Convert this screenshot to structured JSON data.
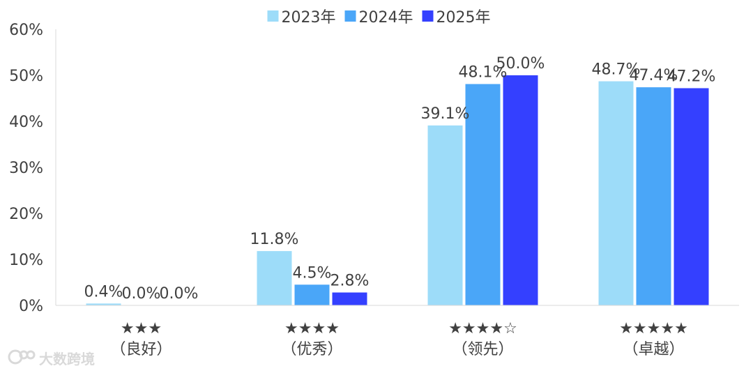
{
  "chart_data": {
    "type": "bar",
    "categories": [
      {
        "stars": "★★★",
        "label": "（良好）"
      },
      {
        "stars": "★★★★",
        "label": "（优秀）"
      },
      {
        "stars": "★★★★☆",
        "label": "（领先）"
      },
      {
        "stars": "★★★★★",
        "label": "（卓越）"
      }
    ],
    "series": [
      {
        "name": "2023年",
        "color": "#9ddcf9",
        "values": [
          0.4,
          11.8,
          39.1,
          48.7
        ],
        "labels": [
          "0.4%",
          "11.8%",
          "39.1%",
          "48.7%"
        ]
      },
      {
        "name": "2024年",
        "color": "#4aa6f8",
        "values": [
          0.0,
          4.5,
          48.1,
          47.4
        ],
        "labels": [
          "0.0%",
          "4.5%",
          "48.1%",
          "47.4%"
        ]
      },
      {
        "name": "2025年",
        "color": "#3440ff",
        "values": [
          0.0,
          2.8,
          50.0,
          47.2
        ],
        "labels": [
          "0.0%",
          "2.8%",
          "50.0%",
          "47.2%"
        ]
      }
    ],
    "ylim": [
      0,
      60
    ],
    "yticks": [
      "0%",
      "10%",
      "20%",
      "30%",
      "40%",
      "50%",
      "60%"
    ],
    "grid": false,
    "legend_position": "top-center"
  },
  "watermark": "大数跨境"
}
